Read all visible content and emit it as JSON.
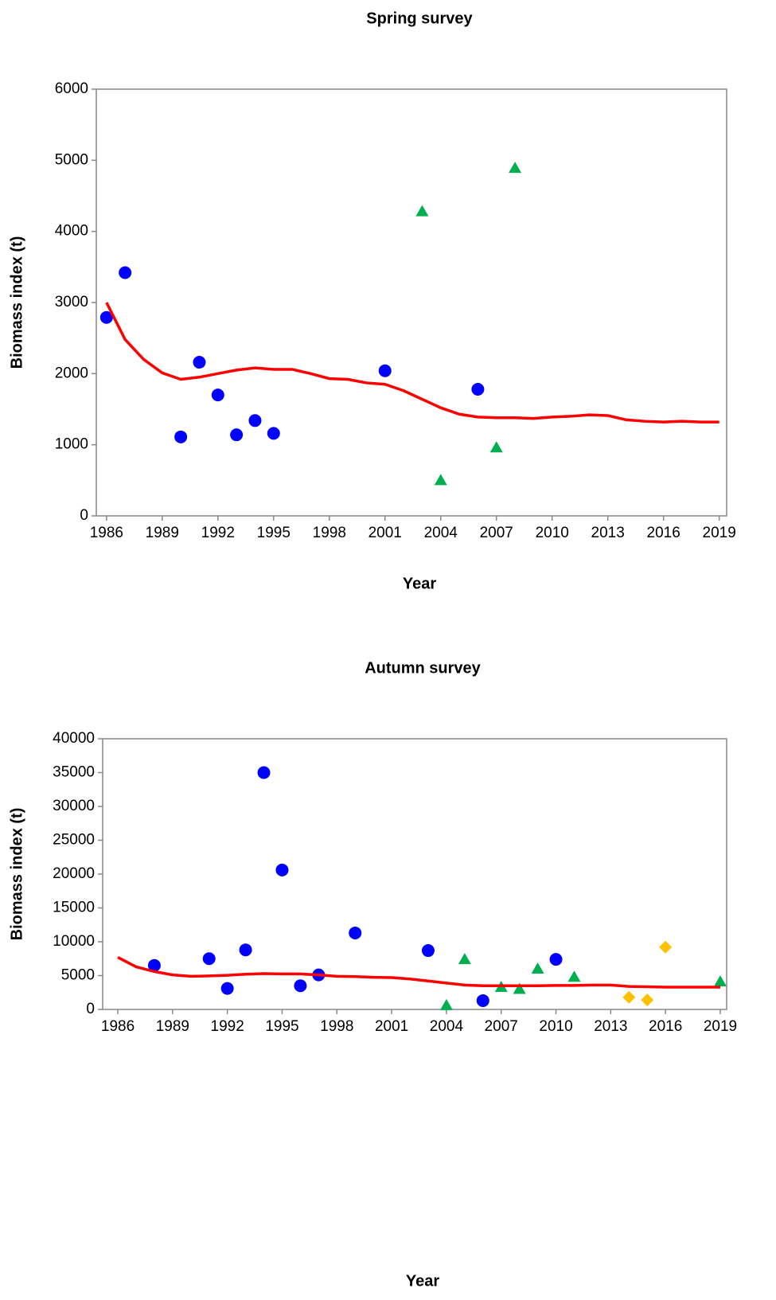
{
  "chart_data": [
    {
      "type": "scatter",
      "title": "Spring survey",
      "x_label": "Year",
      "y_label": "Biomass index (t)",
      "xlim": [
        1985.45,
        2019.4
      ],
      "xticks": [
        1986,
        1989,
        1992,
        1995,
        1998,
        2001,
        2004,
        2007,
        2010,
        2013,
        2016,
        2019
      ],
      "ylim": [
        0,
        6000
      ],
      "yticks": [
        0,
        1000,
        2000,
        3000,
        4000,
        5000,
        6000
      ],
      "grid": false,
      "series": [
        {
          "color": "#0000ff",
          "marker": "circle",
          "x": [
            1986,
            1987,
            1990,
            1991,
            1992,
            1993,
            1994,
            1995,
            2001,
            2006
          ],
          "values": [
            2790,
            3420,
            1110,
            2160,
            1700,
            1140,
            1340,
            1160,
            2040,
            1780
          ]
        },
        {
          "color": "#00b050",
          "marker": "triangle",
          "x": [
            2003,
            2004,
            2007,
            2008
          ],
          "values": [
            4280,
            500,
            960,
            4890
          ]
        },
        {
          "color": "#ff0000",
          "marker": "line",
          "x": [
            1986,
            1987,
            1988,
            1989,
            1990,
            1991,
            1992,
            1993,
            1994,
            1995,
            1996,
            1997,
            1998,
            1999,
            2000,
            2001,
            2002,
            2003,
            2004,
            2005,
            2006,
            2007,
            2008,
            2009,
            2010,
            2011,
            2012,
            2013,
            2014,
            2015,
            2016,
            2017,
            2018,
            2019
          ],
          "values": [
            3000,
            2480,
            2200,
            2010,
            1920,
            1950,
            2000,
            2050,
            2080,
            2060,
            2060,
            2000,
            1930,
            1920,
            1870,
            1850,
            1760,
            1640,
            1520,
            1430,
            1390,
            1380,
            1380,
            1370,
            1390,
            1400,
            1420,
            1410,
            1350,
            1330,
            1320,
            1330,
            1320,
            1320
          ]
        }
      ]
    },
    {
      "type": "scatter",
      "title": "Autumn survey",
      "x_label": "Year",
      "y_label": "Biomass index (t)",
      "xlim": [
        1985.17,
        2019.35
      ],
      "xticks": [
        1986,
        1989,
        1992,
        1995,
        1998,
        2001,
        2004,
        2007,
        2010,
        2013,
        2016,
        2019
      ],
      "ylim": [
        0,
        40000
      ],
      "yticks": [
        0,
        5000,
        10000,
        15000,
        20000,
        25000,
        30000,
        35000,
        40000
      ],
      "grid": false,
      "series": [
        {
          "color": "#0000ff",
          "marker": "circle",
          "x": [
            1988,
            1991,
            1992,
            1993,
            1994,
            1995,
            1996,
            1997,
            1999,
            2003,
            2006,
            2010
          ],
          "values": [
            6500,
            7500,
            3100,
            8800,
            35000,
            20600,
            3500,
            5100,
            11300,
            8700,
            1300,
            7400
          ]
        },
        {
          "color": "#00b050",
          "marker": "triangle",
          "x": [
            2004,
            2005,
            2007,
            2008,
            2009,
            2011,
            2019
          ],
          "values": [
            600,
            7400,
            3300,
            3000,
            6000,
            4800,
            4100
          ]
        },
        {
          "color": "#ffc000",
          "marker": "diamond",
          "x": [
            2014,
            2015,
            2016
          ],
          "values": [
            1800,
            1400,
            9200
          ]
        },
        {
          "color": "#ff0000",
          "marker": "line",
          "x": [
            1986,
            1987,
            1988,
            1989,
            1990,
            1991,
            1992,
            1993,
            1994,
            1995,
            1996,
            1997,
            1998,
            1999,
            2000,
            2001,
            2002,
            2003,
            2004,
            2005,
            2006,
            2007,
            2008,
            2009,
            2010,
            2011,
            2012,
            2013,
            2014,
            2015,
            2016,
            2017,
            2018,
            2019
          ],
          "values": [
            7700,
            6300,
            5600,
            5100,
            4900,
            4950,
            5050,
            5200,
            5300,
            5250,
            5250,
            5100,
            4900,
            4850,
            4750,
            4700,
            4500,
            4200,
            3900,
            3600,
            3500,
            3500,
            3500,
            3500,
            3550,
            3550,
            3600,
            3600,
            3400,
            3350,
            3300,
            3300,
            3300,
            3300
          ]
        }
      ]
    }
  ]
}
